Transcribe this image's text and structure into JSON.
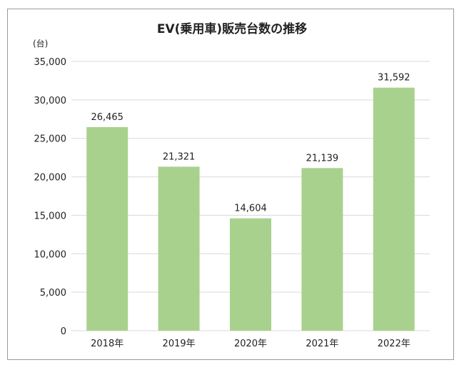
{
  "chart_data": {
    "type": "bar",
    "title": "EV(乗用車)販売台数の推移",
    "unit_label": "(台)",
    "xlabel": "",
    "ylabel": "",
    "categories": [
      "2018年",
      "2019年",
      "2020年",
      "2021年",
      "2022年"
    ],
    "values": [
      26465,
      21321,
      14604,
      21139,
      31592
    ],
    "data_labels": [
      "26,465",
      "21,321",
      "14,604",
      "21,139",
      "31,592"
    ],
    "ylim": [
      0,
      35000
    ],
    "yticks": [
      0,
      5000,
      10000,
      15000,
      20000,
      25000,
      30000,
      35000
    ],
    "ytick_labels": [
      "0",
      "5,000",
      "10,000",
      "15,000",
      "20,000",
      "25,000",
      "30,000",
      "35,000"
    ],
    "grid": true,
    "legend": "none",
    "colors": {
      "bar": "#a9d18e",
      "grid": "#d9d9d9",
      "text": "#222222"
    }
  }
}
